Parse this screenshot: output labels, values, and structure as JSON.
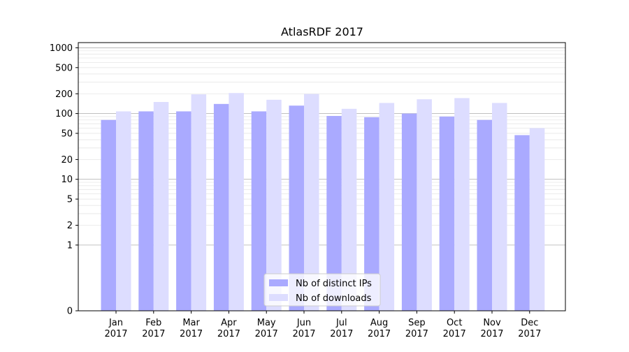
{
  "chart_data": {
    "type": "bar",
    "title": "AtlasRDF 2017",
    "xlabel": "",
    "ylabel": "",
    "y_scale": "symlog",
    "ylim": [
      0,
      1200
    ],
    "y_ticks": [
      0,
      1,
      2,
      5,
      10,
      20,
      50,
      100,
      200,
      500,
      1000
    ],
    "y_tick_labels": [
      "0",
      "1",
      "2",
      "5",
      "10",
      "20",
      "50",
      "100",
      "200",
      "500",
      "1000"
    ],
    "categories": [
      {
        "month": "Jan",
        "year": "2017"
      },
      {
        "month": "Feb",
        "year": "2017"
      },
      {
        "month": "Mar",
        "year": "2017"
      },
      {
        "month": "Apr",
        "year": "2017"
      },
      {
        "month": "May",
        "year": "2017"
      },
      {
        "month": "Jun",
        "year": "2017"
      },
      {
        "month": "Jul",
        "year": "2017"
      },
      {
        "month": "Aug",
        "year": "2017"
      },
      {
        "month": "Sep",
        "year": "2017"
      },
      {
        "month": "Oct",
        "year": "2017"
      },
      {
        "month": "Nov",
        "year": "2017"
      },
      {
        "month": "Dec",
        "year": "2017"
      }
    ],
    "series": [
      {
        "name": "Nb of distinct IPs",
        "color": "#aaaaff",
        "values": [
          80,
          108,
          108,
          140,
          108,
          132,
          92,
          88,
          100,
          90,
          80,
          47
        ]
      },
      {
        "name": "Nb of downloads",
        "color": "#ddddff",
        "values": [
          108,
          150,
          196,
          205,
          162,
          198,
          118,
          145,
          165,
          172,
          145,
          60
        ]
      }
    ],
    "grid": true,
    "legend_position": "lower-center"
  }
}
